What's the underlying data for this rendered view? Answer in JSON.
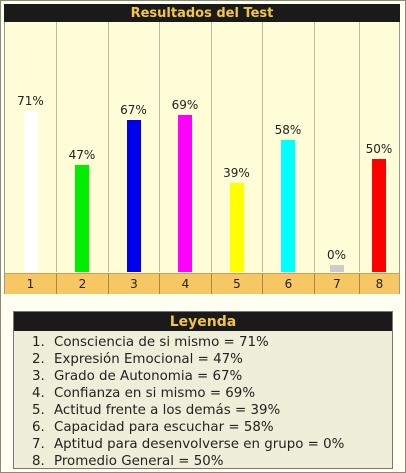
{
  "title": "Resultados del Test",
  "legend_title": "Leyenda",
  "chart_data": {
    "type": "bar",
    "title": "Resultados del Test",
    "categories": [
      "1",
      "2",
      "3",
      "4",
      "5",
      "6",
      "7",
      "8"
    ],
    "values": [
      71,
      47,
      67,
      69,
      39,
      58,
      0,
      50
    ],
    "value_labels": [
      "71%",
      "47%",
      "67%",
      "69%",
      "39%",
      "58%",
      "0%",
      "50%"
    ],
    "colors": [
      "#ffffff",
      "#00ee00",
      "#0000ee",
      "#ff00ff",
      "#ffff00",
      "#00ffff",
      "#cccccc",
      "#ff0000"
    ],
    "ylim": [
      0,
      100
    ],
    "grid": false
  },
  "legend": [
    {
      "num": "1.",
      "text": "Consciencia de si mismo = 71%"
    },
    {
      "num": "2.",
      "text": "Expresión Emocional = 47%"
    },
    {
      "num": "3.",
      "text": "Grado de Autonomia = 67%"
    },
    {
      "num": "4.",
      "text": "Confianza en si mismo = 69%"
    },
    {
      "num": "5.",
      "text": "Actitud frente a los demás = 39%"
    },
    {
      "num": "6.",
      "text": "Capacidad para escuchar = 58%"
    },
    {
      "num": "7.",
      "text": "Aptitud para desenvolverse en grupo = 0%"
    },
    {
      "num": "8.",
      "text": "Promedio General = 50%"
    }
  ]
}
